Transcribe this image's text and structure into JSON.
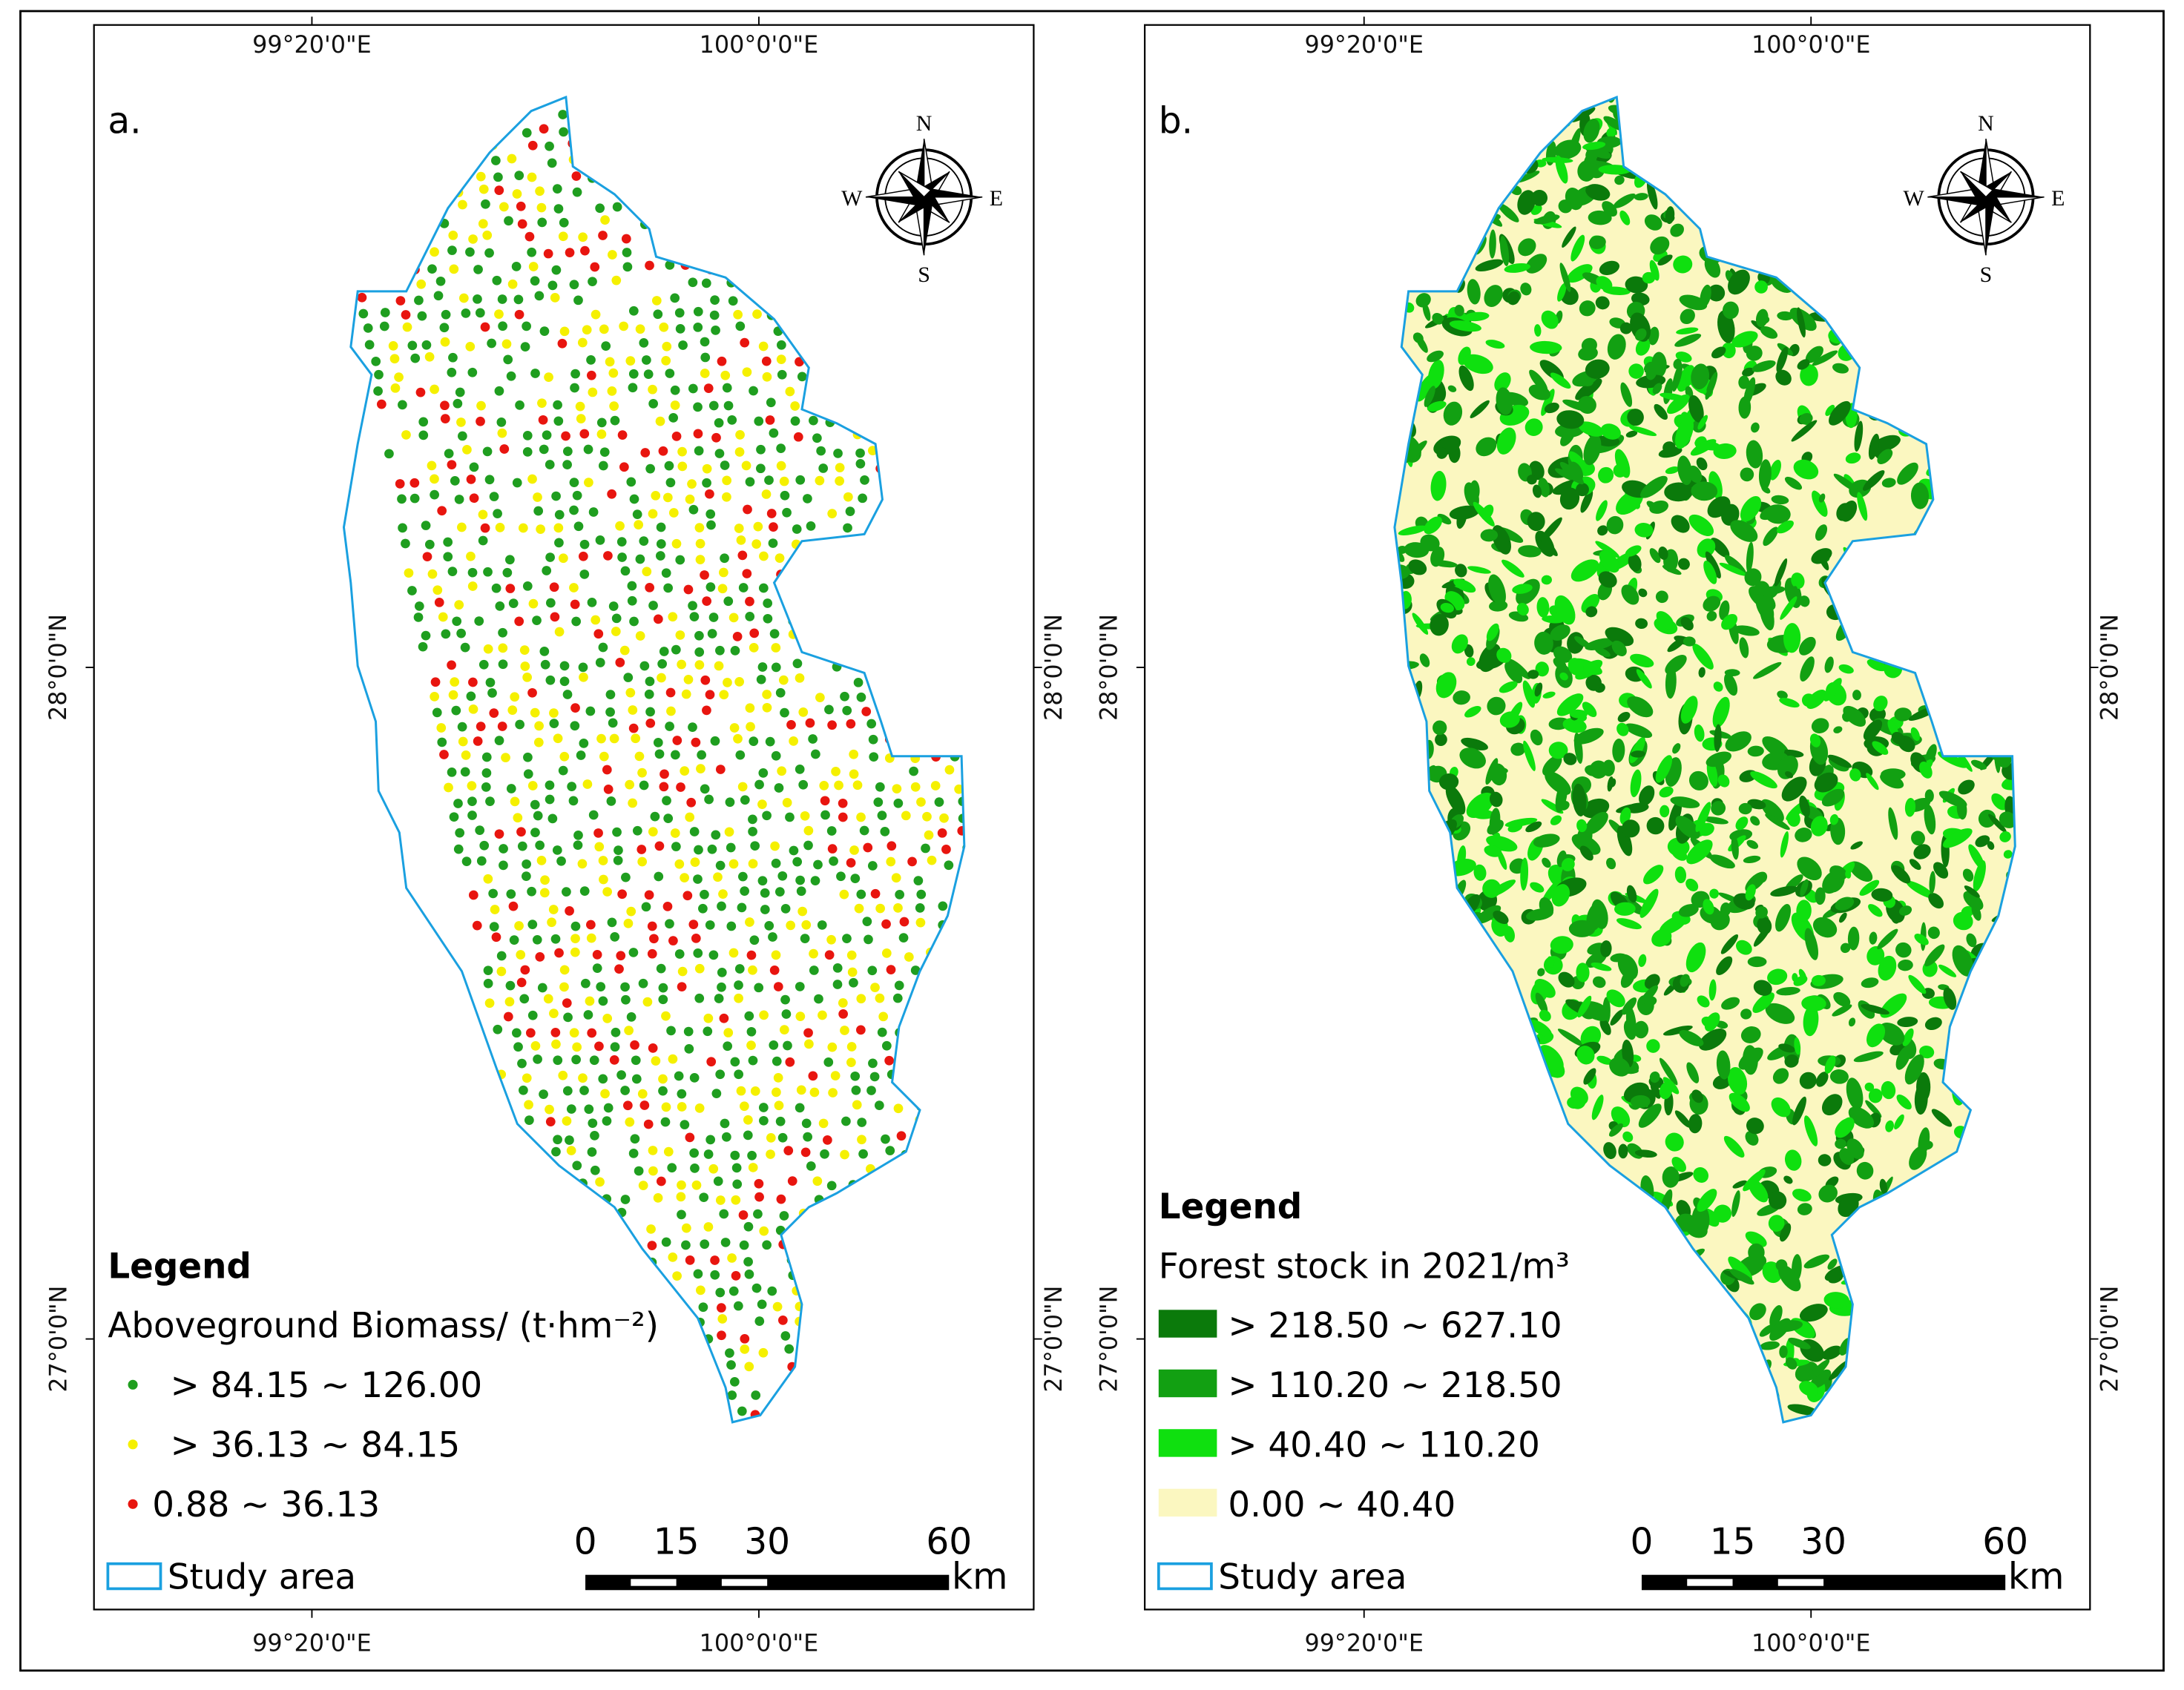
{
  "coordinates": {
    "lon": [
      "99°20'0\"E",
      "100°0'0\"E"
    ],
    "lat": [
      "28°0'0\"N",
      "27°0'0\"N"
    ]
  },
  "compass": {
    "n": "N",
    "e": "E",
    "s": "S",
    "w": "W"
  },
  "scale_bar": {
    "ticks": [
      0,
      15,
      30,
      60
    ],
    "unit": "km"
  },
  "panels": [
    {
      "label": "a.",
      "legend": {
        "title": "Legend",
        "subtitle": "Aboveground Biomass/  (t·hm⁻²)",
        "items": [
          {
            "label": "> 84.15 ~ 126.00",
            "color": "#1f9e1f"
          },
          {
            "label": "> 36.13 ~ 84.15",
            "color": "#f5f000"
          },
          {
            "label": "0.88 ~ 36.13",
            "color": "#e8150f"
          }
        ],
        "boundary": "Study area"
      }
    },
    {
      "label": "b.",
      "legend": {
        "title": "Legend",
        "subtitle": "Forest stock in 2021/m³",
        "items": [
          {
            "label": "> 218.50 ~ 627.10",
            "color": "#0b7a0b"
          },
          {
            "label": "> 110.20 ~ 218.50",
            "color": "#12a012"
          },
          {
            "label": "> 40.40 ~ 110.20",
            "color": "#0fe00f"
          },
          {
            "label": "0.00 ~ 40.40",
            "color": "#fbf7c0"
          }
        ],
        "boundary": "Study area"
      }
    }
  ]
}
